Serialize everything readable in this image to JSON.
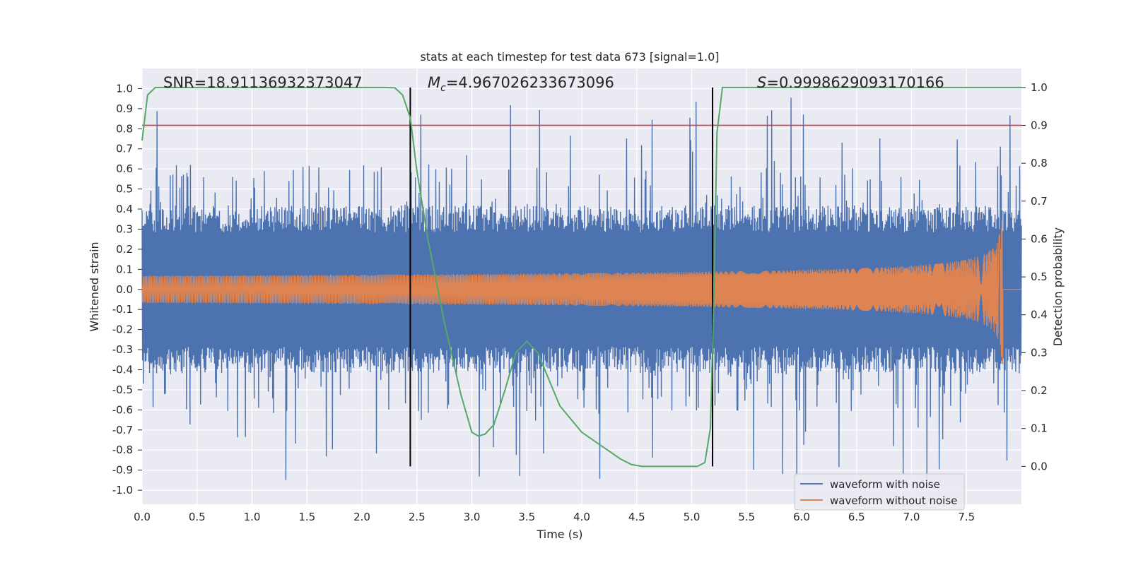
{
  "chart_data": {
    "type": "line",
    "title": "stats at each timestep for test data 673 [signal=1.0]",
    "xlabel": "Time (s)",
    "ylabel": "Whitened strain",
    "ylabel_right": "Detection probability",
    "xlim": [
      0.0,
      8.0
    ],
    "ylim": [
      -1.07,
      1.1
    ],
    "ylim_right": [
      -0.1,
      1.05
    ],
    "x_ticks": [
      "0.0",
      "0.5",
      "1.0",
      "1.5",
      "2.0",
      "2.5",
      "3.0",
      "3.5",
      "4.0",
      "4.5",
      "5.0",
      "5.5",
      "6.0",
      "6.5",
      "7.0",
      "7.5"
    ],
    "y_ticks": [
      "1.0",
      "0.9",
      "0.8",
      "0.7",
      "0.6",
      "0.5",
      "0.4",
      "0.3",
      "0.2",
      "0.1",
      "0.0",
      "-0.1",
      "-0.2",
      "-0.3",
      "-0.4",
      "-0.5",
      "-0.6",
      "-0.7",
      "-0.8",
      "-0.9",
      "-1.0"
    ],
    "y_ticks_right": [
      "1.0",
      "0.9",
      "0.8",
      "0.7",
      "0.6",
      "0.5",
      "0.4",
      "0.3",
      "0.2",
      "0.1",
      "0.0"
    ],
    "annotations": {
      "snr": "SNR=18.91136932373047",
      "mc_symbol": "M",
      "mc_sub": "c",
      "mc_value": "=4.967026233673096",
      "s_symbol": "S",
      "s_value": "=0.9998629093170166"
    },
    "threshold_right": 0.9,
    "vertical_lines_time": [
      2.44,
      5.19
    ],
    "series": [
      {
        "name": "waveform with noise",
        "color": "#4c72b0",
        "style": "noise",
        "x_range": [
          0.0,
          8.0
        ],
        "core_amplitude": 0.38,
        "peak_amplitude": 1.0
      },
      {
        "name": "waveform without noise",
        "color": "#dd8452",
        "style": "chirp",
        "x_range": [
          0.0,
          7.83
        ],
        "merger_time": 7.83,
        "start_amplitude": 0.03,
        "peak_amplitude": 0.45
      },
      {
        "name": "detection probability",
        "color": "#55a868",
        "axis": "right",
        "x": [
          0.0,
          0.05,
          0.12,
          0.2,
          0.4,
          0.8,
          1.2,
          1.6,
          2.0,
          2.2,
          2.3,
          2.37,
          2.44,
          2.5,
          2.6,
          2.75,
          2.9,
          3.0,
          3.06,
          3.12,
          3.2,
          3.3,
          3.4,
          3.5,
          3.6,
          3.7,
          3.8,
          4.0,
          4.2,
          4.35,
          4.45,
          4.55,
          4.7,
          4.9,
          5.05,
          5.12,
          5.17,
          5.2,
          5.23,
          5.28,
          5.35,
          5.5,
          6.0,
          7.0,
          8.0
        ],
        "y": [
          0.86,
          0.98,
          1.0,
          1.0,
          1.0,
          1.0,
          1.0,
          1.0,
          1.0,
          1.0,
          0.999,
          0.98,
          0.92,
          0.78,
          0.6,
          0.38,
          0.19,
          0.09,
          0.08,
          0.085,
          0.11,
          0.2,
          0.3,
          0.33,
          0.3,
          0.23,
          0.16,
          0.09,
          0.05,
          0.02,
          0.005,
          0.0,
          0.0,
          0.0,
          0.0,
          0.01,
          0.1,
          0.42,
          0.88,
          1.0,
          1.0,
          1.0,
          1.0,
          1.0,
          1.0
        ]
      }
    ],
    "legend_position": "lower-right"
  }
}
